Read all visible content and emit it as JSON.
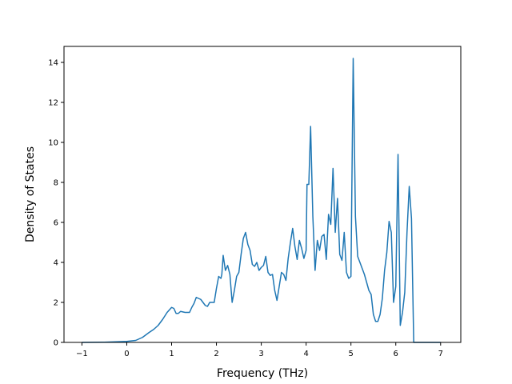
{
  "chart_data": {
    "type": "line",
    "title": "",
    "xlabel": "Frequency (THz)",
    "ylabel": "Density of States",
    "xlim": [
      -1.4,
      7.45
    ],
    "ylim": [
      0,
      14.8
    ],
    "xticks": [
      -1,
      0,
      1,
      2,
      3,
      4,
      5,
      6,
      7
    ],
    "yticks": [
      0,
      2,
      4,
      6,
      8,
      10,
      12,
      14
    ],
    "grid": false,
    "legend": "none",
    "line_color": "#1f77b4",
    "series": [
      {
        "name": "",
        "x": [
          -1.0,
          -0.5,
          0.0,
          0.2,
          0.35,
          0.5,
          0.6,
          0.7,
          0.8,
          0.9,
          1.0,
          1.05,
          1.1,
          1.15,
          1.2,
          1.3,
          1.4,
          1.45,
          1.5,
          1.55,
          1.6,
          1.65,
          1.7,
          1.75,
          1.8,
          1.85,
          1.9,
          1.95,
          2.0,
          2.05,
          2.1,
          2.12,
          2.15,
          2.2,
          2.25,
          2.3,
          2.35,
          2.4,
          2.45,
          2.5,
          2.55,
          2.6,
          2.65,
          2.7,
          2.75,
          2.8,
          2.85,
          2.9,
          2.95,
          3.0,
          3.05,
          3.1,
          3.15,
          3.2,
          3.25,
          3.3,
          3.35,
          3.4,
          3.45,
          3.5,
          3.55,
          3.6,
          3.65,
          3.7,
          3.75,
          3.8,
          3.85,
          3.9,
          3.95,
          4.0,
          4.02,
          4.06,
          4.1,
          4.15,
          4.2,
          4.25,
          4.3,
          4.35,
          4.4,
          4.45,
          4.5,
          4.55,
          4.6,
          4.65,
          4.7,
          4.75,
          4.8,
          4.85,
          4.9,
          4.95,
          5.0,
          5.05,
          5.1,
          5.15,
          5.2,
          5.3,
          5.4,
          5.45,
          5.5,
          5.55,
          5.6,
          5.65,
          5.7,
          5.75,
          5.8,
          5.85,
          5.9,
          5.95,
          6.0,
          6.05,
          6.1,
          6.15,
          6.2,
          6.25,
          6.3,
          6.35,
          6.4,
          6.42,
          6.5,
          7.0
        ],
        "values": [
          0.0,
          0.01,
          0.05,
          0.1,
          0.25,
          0.5,
          0.65,
          0.85,
          1.15,
          1.5,
          1.75,
          1.7,
          1.45,
          1.45,
          1.55,
          1.5,
          1.5,
          1.75,
          1.95,
          2.25,
          2.2,
          2.15,
          2.0,
          1.85,
          1.8,
          2.0,
          2.0,
          2.0,
          2.7,
          3.3,
          3.2,
          3.4,
          4.35,
          3.6,
          3.85,
          3.4,
          2.0,
          2.6,
          3.3,
          3.5,
          4.4,
          5.2,
          5.5,
          4.9,
          4.6,
          3.9,
          3.8,
          4.0,
          3.6,
          3.75,
          3.85,
          4.3,
          3.5,
          3.35,
          3.4,
          2.6,
          2.1,
          2.8,
          3.5,
          3.4,
          3.1,
          4.2,
          5.0,
          5.7,
          4.8,
          4.15,
          5.1,
          4.7,
          4.2,
          4.6,
          7.9,
          7.9,
          10.8,
          6.3,
          3.6,
          5.1,
          4.6,
          5.3,
          5.4,
          4.15,
          6.4,
          5.9,
          8.7,
          5.5,
          7.2,
          4.4,
          4.1,
          5.5,
          3.5,
          3.2,
          3.3,
          14.2,
          6.3,
          4.3,
          4.0,
          3.4,
          2.6,
          2.4,
          1.4,
          1.05,
          1.05,
          1.4,
          2.2,
          3.6,
          4.5,
          6.05,
          5.5,
          2.0,
          2.8,
          9.4,
          0.85,
          1.5,
          2.5,
          5.5,
          7.8,
          6.2,
          0.0,
          0.0,
          0.0,
          0.0
        ]
      }
    ]
  }
}
